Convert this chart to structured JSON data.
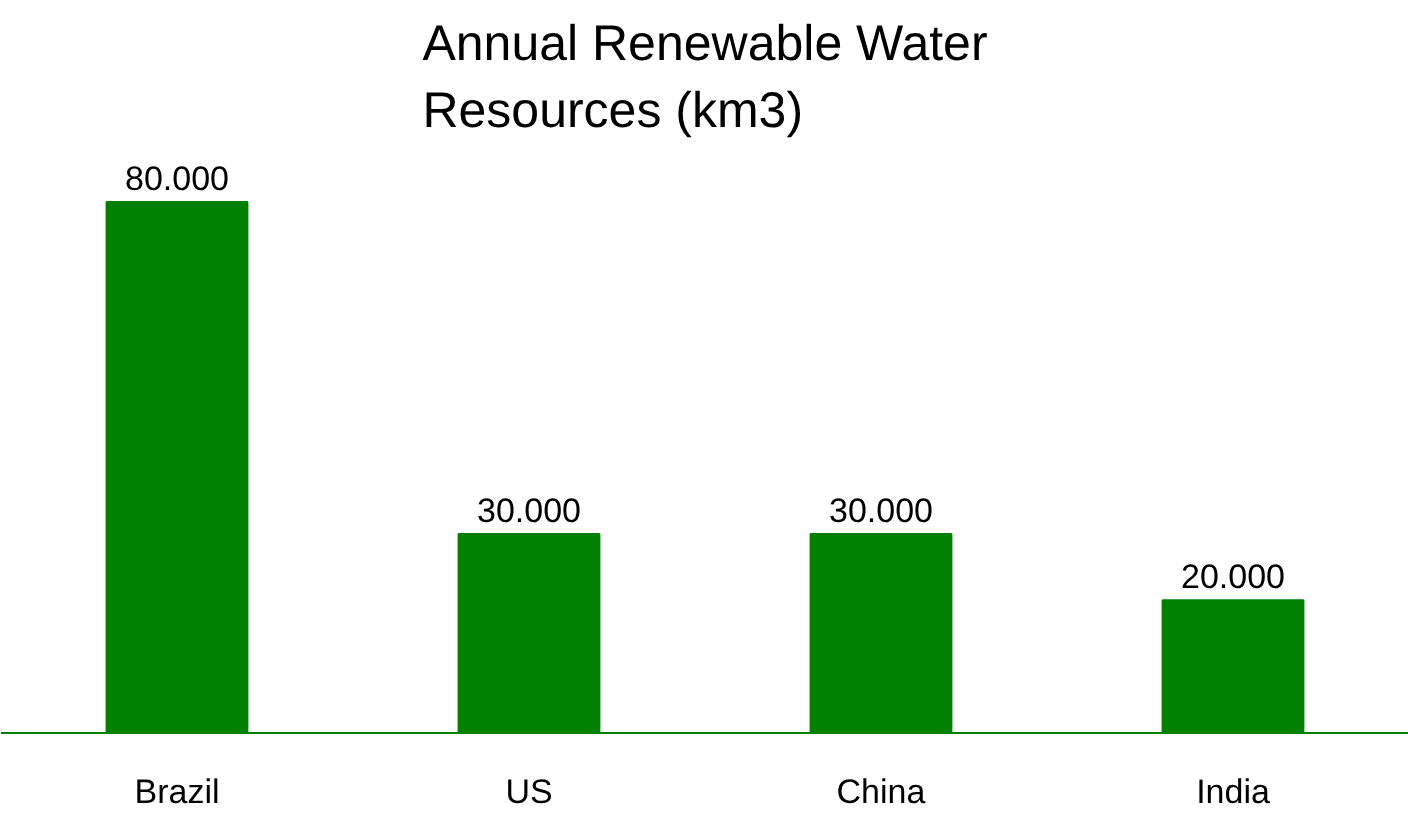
{
  "chart_data": {
    "type": "bar",
    "title": "Annual Renewable Water\nResources (km3)",
    "categories": [
      "Brazil",
      "US",
      "China",
      "India"
    ],
    "values": [
      80000,
      30000,
      30000,
      20000
    ],
    "value_labels": [
      "80.000",
      "30.000",
      "30.000",
      "20.000"
    ],
    "color": "#008000",
    "grid": false
  }
}
